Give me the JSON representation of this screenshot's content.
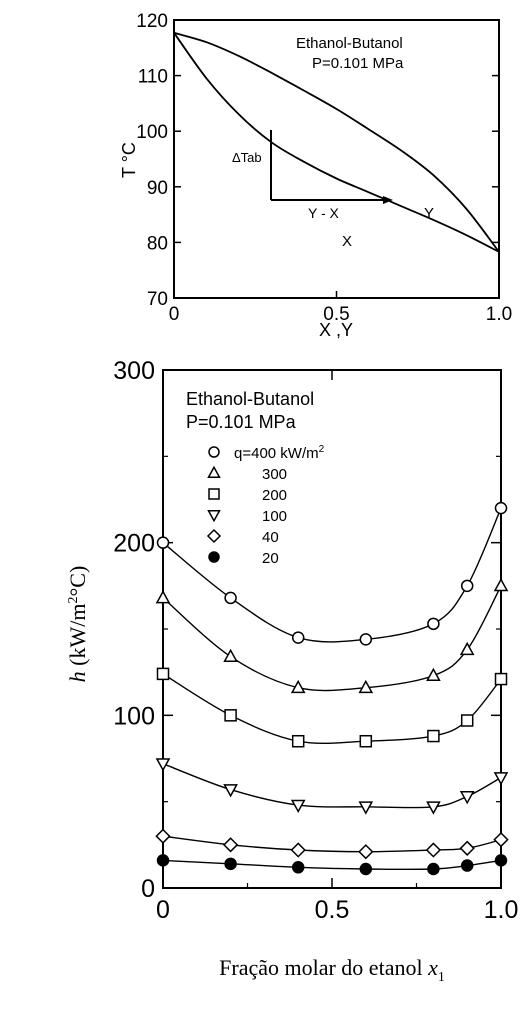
{
  "chart_data": [
    {
      "type": "line",
      "title": "",
      "annotations": [
        "Ethanol-Butanol",
        "P=0.101 MPa",
        "ΔTab",
        "Y - X",
        "X",
        "Y"
      ],
      "xlabel": "X ,Y",
      "ylabel": "T °C",
      "xlim": [
        0,
        1.0
      ],
      "ylim": [
        70,
        120
      ],
      "x_ticks": [
        "0",
        "0.5",
        "1.0"
      ],
      "y_ticks": [
        "70",
        "80",
        "90",
        "100",
        "110",
        "120"
      ],
      "grid": false,
      "series": [
        {
          "name": "X",
          "x": [
            0,
            0.1,
            0.2,
            0.3,
            0.4,
            0.5,
            0.6,
            0.7,
            0.8,
            0.9,
            1.0
          ],
          "y": [
            117.7,
            109.5,
            103.0,
            98.0,
            94.5,
            91.5,
            89.0,
            86.5,
            84.0,
            81.3,
            78.3
          ]
        },
        {
          "name": "Y",
          "x": [
            0,
            0.1,
            0.2,
            0.3,
            0.4,
            0.5,
            0.6,
            0.7,
            0.8,
            0.9,
            1.0
          ],
          "y": [
            117.7,
            116.0,
            113.5,
            110.5,
            107.3,
            104.0,
            100.3,
            96.5,
            92.0,
            86.0,
            78.3
          ]
        }
      ]
    },
    {
      "type": "scatter",
      "title": "",
      "annotations": [
        "Ethanol-Butanol",
        "P=0.101 MPa"
      ],
      "xlabel": "Fração molar do etanol x1",
      "ylabel": "h (kW/m2°C)",
      "xlim": [
        0,
        1.0
      ],
      "ylim": [
        0,
        300
      ],
      "x_ticks": [
        "0",
        "0.5",
        "1.0"
      ],
      "y_ticks": [
        "0",
        "100",
        "200",
        "300"
      ],
      "grid": false,
      "legend_position": "top-left",
      "series": [
        {
          "name": "q=400 kW/m2",
          "marker": "circle",
          "x": [
            0,
            0.2,
            0.4,
            0.6,
            0.8,
            0.9,
            1.0
          ],
          "y": [
            200,
            168,
            145,
            144,
            153,
            175,
            220
          ]
        },
        {
          "name": "300",
          "marker": "triangle-up",
          "x": [
            0,
            0.2,
            0.4,
            0.6,
            0.8,
            0.9,
            1.0
          ],
          "y": [
            168,
            134,
            116,
            116,
            123,
            138,
            175
          ]
        },
        {
          "name": "200",
          "marker": "square",
          "x": [
            0,
            0.2,
            0.4,
            0.6,
            0.8,
            0.9,
            1.0
          ],
          "y": [
            124,
            100,
            85,
            85,
            88,
            97,
            121
          ]
        },
        {
          "name": "100",
          "marker": "triangle-down",
          "x": [
            0,
            0.2,
            0.4,
            0.6,
            0.8,
            0.9,
            1.0
          ],
          "y": [
            72,
            57,
            48,
            47,
            47,
            53,
            64
          ]
        },
        {
          "name": "40",
          "marker": "diamond",
          "x": [
            0,
            0.2,
            0.4,
            0.6,
            0.8,
            0.9,
            1.0
          ],
          "y": [
            30,
            25,
            22,
            21,
            22,
            23,
            28
          ]
        },
        {
          "name": "20",
          "marker": "filled-circle",
          "x": [
            0,
            0.2,
            0.4,
            0.6,
            0.8,
            0.9,
            1.0
          ],
          "y": [
            16,
            14,
            12,
            11,
            11,
            13,
            16
          ]
        }
      ]
    }
  ]
}
